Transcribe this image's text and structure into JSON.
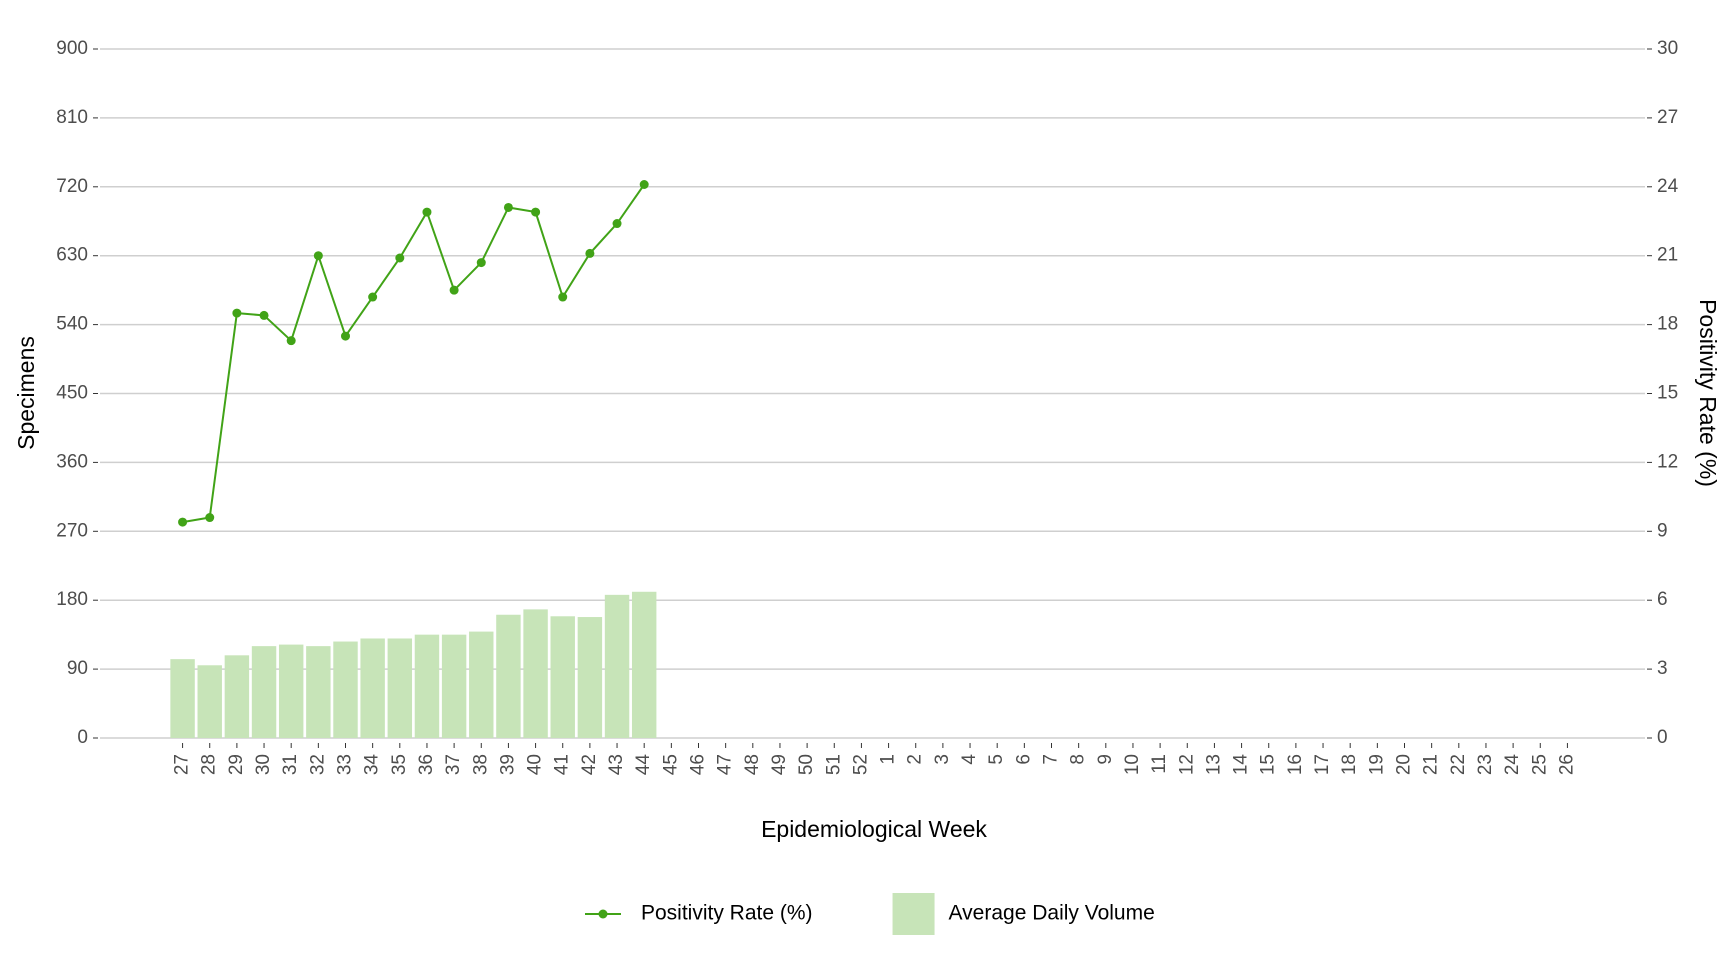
{
  "chart_data": {
    "type": "bar-line",
    "x_label": "Epidemiological Week",
    "y_label": "Specimens",
    "y2_label": "Positivity Rate (%)",
    "categories": [
      "27",
      "28",
      "29",
      "30",
      "31",
      "32",
      "33",
      "34",
      "35",
      "36",
      "37",
      "38",
      "39",
      "40",
      "41",
      "42",
      "43",
      "44",
      "45",
      "46",
      "47",
      "48",
      "49",
      "50",
      "51",
      "52",
      "1",
      "2",
      "3",
      "4",
      "5",
      "6",
      "7",
      "8",
      "9",
      "10",
      "11",
      "12",
      "13",
      "14",
      "15",
      "16",
      "17",
      "18",
      "19",
      "20",
      "21",
      "22",
      "23",
      "24",
      "25",
      "26"
    ],
    "series": [
      {
        "name": "Positivity Rate (%)",
        "type": "line",
        "axis": "y2",
        "color": "#41a317",
        "values": [
          9.4,
          9.6,
          18.5,
          18.4,
          17.3,
          21.0,
          17.5,
          19.2,
          20.9,
          22.9,
          19.5,
          20.7,
          23.1,
          22.9,
          19.2,
          21.1,
          22.4,
          24.1,
          null,
          null,
          null,
          null,
          null,
          null,
          null,
          null,
          null,
          null,
          null,
          null,
          null,
          null,
          null,
          null,
          null,
          null,
          null,
          null,
          null,
          null,
          null,
          null,
          null,
          null,
          null,
          null,
          null,
          null,
          null,
          null,
          null,
          null
        ]
      },
      {
        "name": "Average Daily Volume",
        "type": "bar",
        "axis": "y",
        "color": "#c7e4b8",
        "values": [
          103,
          95,
          108,
          120,
          122,
          120,
          126,
          130,
          130,
          135,
          135,
          139,
          161,
          168,
          159,
          158,
          187,
          191,
          null,
          null,
          null,
          null,
          null,
          null,
          null,
          null,
          null,
          null,
          null,
          null,
          null,
          null,
          null,
          null,
          null,
          null,
          null,
          null,
          null,
          null,
          null,
          null,
          null,
          null,
          null,
          null,
          null,
          null,
          null,
          null,
          null,
          null
        ]
      }
    ],
    "ylim": [
      0,
      900
    ],
    "yticks": [
      0,
      90,
      180,
      270,
      360,
      450,
      540,
      630,
      720,
      810,
      900
    ],
    "y2lim": [
      0,
      30
    ],
    "y2ticks": [
      0,
      3,
      6,
      9,
      12,
      15,
      18,
      21,
      24,
      27,
      30
    ],
    "grid": true,
    "legend": "bottom"
  }
}
